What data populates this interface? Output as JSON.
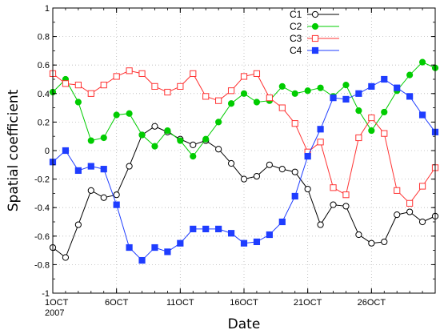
{
  "chart_data": {
    "type": "line",
    "title": "",
    "xlabel": "Date",
    "ylabel": "Spatial coefficient",
    "x_ticks": [
      "1OCT",
      "6OCT",
      "11OCT",
      "16OCT",
      "21OCT",
      "26OCT"
    ],
    "x_tick_values": [
      1,
      6,
      11,
      16,
      21,
      26
    ],
    "x_year_label": "2007",
    "x_range": [
      1,
      31
    ],
    "ylim": [
      -1,
      1
    ],
    "y_ticks": [
      "-1",
      "-0.8",
      "-0.6",
      "-0.4",
      "-0.2",
      "0",
      "0.2",
      "0.4",
      "0.6",
      "0.8",
      "1"
    ],
    "y_tick_values": [
      -1,
      -0.8,
      -0.6,
      -0.4,
      -0.2,
      0,
      0.2,
      0.4,
      0.6,
      0.8,
      1
    ],
    "grid": true,
    "legend_position": "top-center",
    "x": [
      1,
      2,
      3,
      4,
      5,
      6,
      7,
      8,
      9,
      10,
      11,
      12,
      13,
      14,
      15,
      16,
      17,
      18,
      19,
      20,
      21,
      22,
      23,
      24,
      25,
      26,
      27,
      28,
      29,
      30,
      31
    ],
    "series": [
      {
        "name": "C1",
        "color": "#000000",
        "marker": "open-circle",
        "values": [
          -0.68,
          -0.75,
          -0.52,
          -0.28,
          -0.33,
          -0.31,
          -0.11,
          0.11,
          0.17,
          0.13,
          0.08,
          0.04,
          0.07,
          0.01,
          -0.09,
          -0.2,
          -0.18,
          -0.1,
          -0.13,
          -0.15,
          -0.27,
          -0.52,
          -0.38,
          -0.39,
          -0.59,
          -0.65,
          -0.64,
          -0.45,
          -0.43,
          -0.5,
          -0.46
        ]
      },
      {
        "name": "C2",
        "color": "#00cc00",
        "marker": "filled-circle",
        "values": [
          0.41,
          0.5,
          0.34,
          0.07,
          0.09,
          0.25,
          0.26,
          0.11,
          0.03,
          0.14,
          0.07,
          -0.04,
          0.08,
          0.2,
          0.33,
          0.4,
          0.34,
          0.35,
          0.45,
          0.4,
          0.42,
          0.44,
          0.38,
          0.46,
          0.28,
          0.14,
          0.27,
          0.42,
          0.53,
          0.62,
          0.58
        ]
      },
      {
        "name": "C3",
        "color": "#ff3333",
        "marker": "open-square",
        "values": [
          0.54,
          0.47,
          0.46,
          0.4,
          0.46,
          0.52,
          0.56,
          0.54,
          0.45,
          0.41,
          0.45,
          0.54,
          0.38,
          0.35,
          0.42,
          0.52,
          0.54,
          0.37,
          0.3,
          0.19,
          -0.01,
          0.06,
          -0.26,
          -0.31,
          0.09,
          0.23,
          0.12,
          -0.28,
          -0.37,
          -0.25,
          -0.12
        ]
      },
      {
        "name": "C4",
        "color": "#1f3dff",
        "marker": "filled-square",
        "values": [
          -0.08,
          0.0,
          -0.14,
          -0.11,
          -0.13,
          -0.38,
          -0.68,
          -0.77,
          -0.68,
          -0.71,
          -0.65,
          -0.55,
          -0.55,
          -0.55,
          -0.58,
          -0.65,
          -0.64,
          -0.59,
          -0.5,
          -0.32,
          -0.04,
          0.15,
          0.37,
          0.36,
          0.4,
          0.45,
          0.5,
          0.44,
          0.38,
          0.25,
          0.13
        ]
      }
    ]
  }
}
